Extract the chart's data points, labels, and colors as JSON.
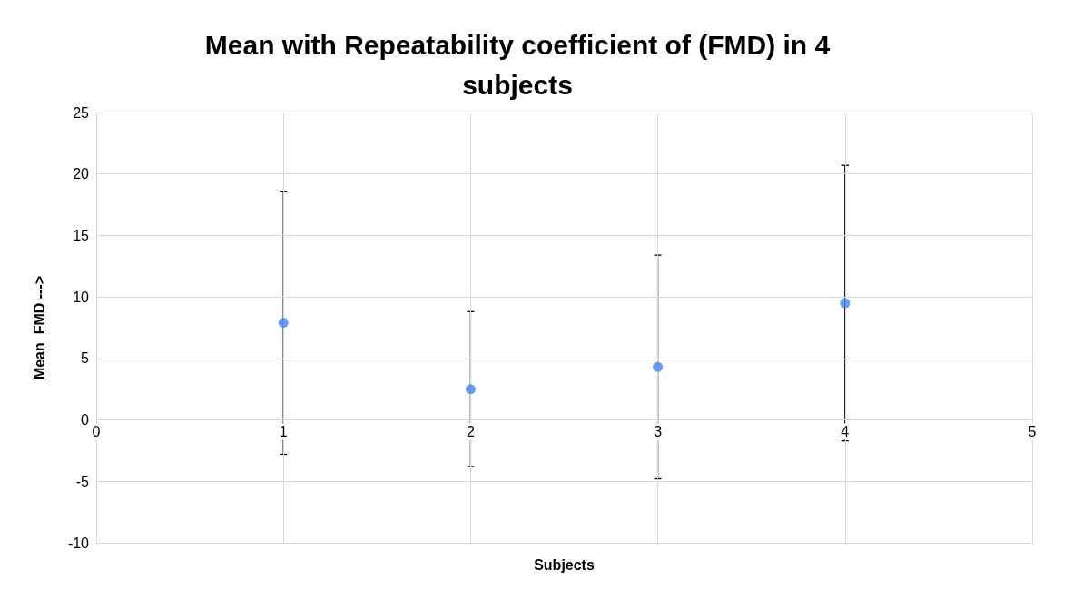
{
  "chart_data": {
    "type": "scatter",
    "title": "Mean with Repeatability coefficient of (FMD) in 4\nsubjects",
    "xlabel": "Subjects",
    "ylabel": "Mean  FMD --->",
    "x": [
      1,
      2,
      3,
      4
    ],
    "series": [
      {
        "color": "#4285f4",
        "values": [
          7.9,
          2.5,
          4.3,
          9.5
        ],
        "errors": [
          10.7,
          6.3,
          9.1,
          11.2
        ]
      }
    ],
    "xlim": [
      0,
      5
    ],
    "xticks": [
      0,
      1,
      2,
      3,
      4,
      5
    ],
    "ylim": [
      -10,
      25
    ],
    "yticks": [
      -10,
      -5,
      0,
      5,
      10,
      15,
      20,
      25
    ],
    "grid": true,
    "marker": "circle",
    "legend": false
  }
}
